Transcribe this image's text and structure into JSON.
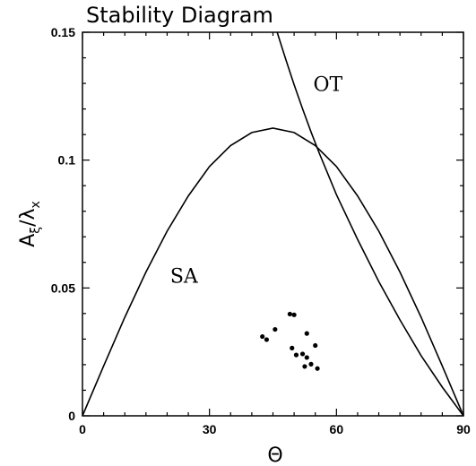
{
  "chart_data": {
    "type": "scatter",
    "title": "Stability Diagram",
    "xlabel": "Θ",
    "ylabel_main": "A",
    "ylabel_sub1": "ξ",
    "ylabel_slash": "/λ",
    "ylabel_sub2": "x",
    "xlim": [
      0,
      90
    ],
    "ylim": [
      0,
      0.15
    ],
    "x_ticks": [
      {
        "value": 0,
        "label": "0"
      },
      {
        "value": 30,
        "label": "30"
      },
      {
        "value": 60,
        "label": "60"
      },
      {
        "value": 90,
        "label": "90"
      }
    ],
    "y_ticks": [
      {
        "value": 0,
        "label": "0"
      },
      {
        "value": 0.05,
        "label": "0.05"
      },
      {
        "value": 0.1,
        "label": "0.1"
      },
      {
        "value": 0.15,
        "label": "0.15"
      }
    ],
    "regions": [
      {
        "text": "SA",
        "x": 24,
        "y": 0.052
      },
      {
        "text": "OT",
        "x": 58,
        "y": 0.127
      }
    ],
    "curves": [
      {
        "name": "SA",
        "points": [
          [
            0,
            0
          ],
          [
            5,
            0.0195
          ],
          [
            10,
            0.0385
          ],
          [
            15,
            0.0562
          ],
          [
            20,
            0.0722
          ],
          [
            25,
            0.086
          ],
          [
            30,
            0.0975
          ],
          [
            35,
            0.1057
          ],
          [
            40,
            0.1108
          ],
          [
            45,
            0.1125
          ],
          [
            50,
            0.1108
          ],
          [
            55,
            0.1057
          ],
          [
            60,
            0.0975
          ],
          [
            65,
            0.086
          ],
          [
            70,
            0.0722
          ],
          [
            75,
            0.0562
          ],
          [
            80,
            0.0385
          ],
          [
            85,
            0.0195
          ],
          [
            90,
            0
          ]
        ]
      },
      {
        "name": "OT",
        "points": [
          [
            46,
            0.15
          ],
          [
            48,
            0.1395
          ],
          [
            50,
            0.1295
          ],
          [
            52,
            0.12
          ],
          [
            54,
            0.111
          ],
          [
            56,
            0.1025
          ],
          [
            58,
            0.0945
          ],
          [
            60,
            0.0865
          ],
          [
            65,
            0.069
          ],
          [
            70,
            0.0525
          ],
          [
            75,
            0.0375
          ],
          [
            80,
            0.0235
          ],
          [
            85,
            0.0112
          ],
          [
            90,
            0
          ]
        ]
      }
    ],
    "points": [
      {
        "x": 42.5,
        "y": 0.031
      },
      {
        "x": 43.5,
        "y": 0.0298
      },
      {
        "x": 45.5,
        "y": 0.0338
      },
      {
        "x": 49,
        "y": 0.0398
      },
      {
        "x": 50,
        "y": 0.0395
      },
      {
        "x": 49.5,
        "y": 0.0265
      },
      {
        "x": 50.5,
        "y": 0.0238
      },
      {
        "x": 52,
        "y": 0.0242
      },
      {
        "x": 53,
        "y": 0.0322
      },
      {
        "x": 55,
        "y": 0.0275
      },
      {
        "x": 53,
        "y": 0.0228
      },
      {
        "x": 52.5,
        "y": 0.0193
      },
      {
        "x": 54,
        "y": 0.0202
      },
      {
        "x": 55.5,
        "y": 0.0185
      }
    ]
  }
}
